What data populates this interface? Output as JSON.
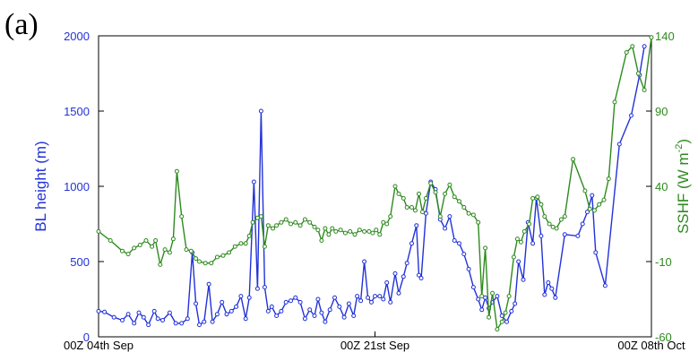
{
  "panel_label": "(a)",
  "chart_data": {
    "type": "line",
    "x_ticks": [
      "00Z 04th Sep",
      "00Z 21st Sep",
      "00Z 08th Oct"
    ],
    "y_left": {
      "label": "BL height (m)",
      "range": [
        0,
        2000
      ],
      "ticks": [
        "0",
        "500",
        "1000",
        "1500",
        "2000"
      ],
      "color": "#2232d8"
    },
    "y_right": {
      "label_main": "SSHF (W m",
      "label_exp": "-2",
      "label_close": ")",
      "range": [
        -60,
        140
      ],
      "ticks": [
        "-60",
        "-10",
        "40",
        "90",
        "140"
      ],
      "color": "#2e8a1e"
    },
    "grid": false,
    "series": [
      {
        "axis": "left",
        "color": "#2232d8",
        "points": [
          [
            0.0,
            170
          ],
          [
            0.5,
            165
          ],
          [
            1.3,
            130
          ],
          [
            2.0,
            110
          ],
          [
            2.5,
            150
          ],
          [
            3.0,
            90
          ],
          [
            3.4,
            160
          ],
          [
            3.8,
            130
          ],
          [
            4.2,
            80
          ],
          [
            4.7,
            170
          ],
          [
            5.0,
            120
          ],
          [
            5.4,
            110
          ],
          [
            6.0,
            160
          ],
          [
            6.5,
            90
          ],
          [
            7.0,
            90
          ],
          [
            7.5,
            120
          ],
          [
            7.9,
            560
          ],
          [
            8.2,
            220
          ],
          [
            8.5,
            80
          ],
          [
            8.9,
            100
          ],
          [
            9.3,
            350
          ],
          [
            9.6,
            100
          ],
          [
            10.0,
            150
          ],
          [
            10.4,
            230
          ],
          [
            10.8,
            150
          ],
          [
            11.2,
            170
          ],
          [
            11.6,
            200
          ],
          [
            12.0,
            270
          ],
          [
            12.4,
            120
          ],
          [
            12.7,
            260
          ],
          [
            13.1,
            1030
          ],
          [
            13.4,
            320
          ],
          [
            13.7,
            1500
          ],
          [
            14.0,
            330
          ],
          [
            14.3,
            170
          ],
          [
            14.6,
            200
          ],
          [
            15.0,
            140
          ],
          [
            15.4,
            170
          ],
          [
            15.8,
            230
          ],
          [
            16.2,
            240
          ],
          [
            16.6,
            260
          ],
          [
            17.0,
            230
          ],
          [
            17.4,
            120
          ],
          [
            17.8,
            180
          ],
          [
            18.2,
            140
          ],
          [
            18.5,
            250
          ],
          [
            18.8,
            160
          ],
          [
            19.1,
            100
          ],
          [
            19.5,
            180
          ],
          [
            19.9,
            260
          ],
          [
            20.3,
            200
          ],
          [
            20.7,
            130
          ],
          [
            21.1,
            220
          ],
          [
            21.5,
            140
          ],
          [
            21.8,
            270
          ],
          [
            22.1,
            240
          ],
          [
            22.4,
            500
          ],
          [
            22.7,
            260
          ],
          [
            23.0,
            230
          ],
          [
            23.3,
            270
          ],
          [
            23.7,
            270
          ],
          [
            24.0,
            250
          ],
          [
            24.3,
            360
          ],
          [
            24.6,
            230
          ],
          [
            25.0,
            420
          ],
          [
            25.3,
            290
          ],
          [
            25.7,
            400
          ],
          [
            26.0,
            490
          ],
          [
            26.4,
            620
          ],
          [
            26.8,
            740
          ],
          [
            27.0,
            410
          ],
          [
            27.2,
            390
          ],
          [
            27.6,
            820
          ],
          [
            28.0,
            1030
          ],
          [
            28.4,
            980
          ],
          [
            28.8,
            780
          ],
          [
            29.2,
            720
          ],
          [
            29.6,
            800
          ],
          [
            30.0,
            640
          ],
          [
            30.4,
            620
          ],
          [
            30.8,
            550
          ],
          [
            31.2,
            450
          ],
          [
            31.6,
            330
          ],
          [
            32.0,
            250
          ],
          [
            32.3,
            180
          ],
          [
            32.6,
            260
          ],
          [
            32.9,
            190
          ],
          [
            33.2,
            230
          ],
          [
            33.6,
            270
          ],
          [
            34.0,
            140
          ],
          [
            34.4,
            100
          ],
          [
            34.8,
            170
          ],
          [
            35.1,
            220
          ],
          [
            35.4,
            500
          ],
          [
            35.8,
            380
          ],
          [
            36.2,
            760
          ],
          [
            36.6,
            620
          ],
          [
            36.9,
            920
          ],
          [
            37.3,
            670
          ],
          [
            37.6,
            280
          ],
          [
            37.9,
            360
          ],
          [
            38.2,
            320
          ],
          [
            38.5,
            260
          ],
          [
            39.3,
            680
          ],
          [
            40.4,
            670
          ],
          [
            40.8,
            750
          ],
          [
            41.2,
            830
          ],
          [
            41.6,
            940
          ],
          [
            41.9,
            560
          ],
          [
            42.7,
            340
          ],
          [
            43.9,
            1280
          ],
          [
            44.9,
            1470
          ],
          [
            45.6,
            1740
          ],
          [
            46.0,
            1930
          ]
        ]
      },
      {
        "axis": "right",
        "color": "#2e8a1e",
        "points": [
          [
            0.0,
            10
          ],
          [
            1.0,
            4
          ],
          [
            2.0,
            -3
          ],
          [
            2.5,
            -5
          ],
          [
            3.0,
            -1
          ],
          [
            3.5,
            1
          ],
          [
            4.0,
            4
          ],
          [
            4.5,
            0
          ],
          [
            4.8,
            4
          ],
          [
            5.2,
            -12
          ],
          [
            5.6,
            -2
          ],
          [
            6.0,
            -4
          ],
          [
            6.3,
            5
          ],
          [
            6.6,
            50
          ],
          [
            7.0,
            20
          ],
          [
            7.4,
            -2
          ],
          [
            7.8,
            -3
          ],
          [
            8.2,
            -8
          ],
          [
            8.5,
            -10
          ],
          [
            9.0,
            -11
          ],
          [
            9.5,
            -11
          ],
          [
            10.0,
            -7
          ],
          [
            10.5,
            -6
          ],
          [
            11.0,
            -4
          ],
          [
            11.5,
            0
          ],
          [
            12.0,
            2
          ],
          [
            12.4,
            2
          ],
          [
            12.7,
            7
          ],
          [
            13.0,
            16
          ],
          [
            13.4,
            19
          ],
          [
            13.7,
            20
          ],
          [
            14.0,
            0
          ],
          [
            14.3,
            14
          ],
          [
            14.7,
            12
          ],
          [
            15.0,
            14
          ],
          [
            15.4,
            16
          ],
          [
            15.8,
            18
          ],
          [
            16.2,
            15
          ],
          [
            16.6,
            16
          ],
          [
            17.0,
            14
          ],
          [
            17.4,
            18
          ],
          [
            17.8,
            16
          ],
          [
            18.2,
            13
          ],
          [
            18.5,
            11
          ],
          [
            18.8,
            4
          ],
          [
            19.1,
            12
          ],
          [
            19.4,
            8
          ],
          [
            19.7,
            12
          ],
          [
            20.0,
            10
          ],
          [
            20.4,
            11
          ],
          [
            20.8,
            9
          ],
          [
            21.2,
            10
          ],
          [
            21.6,
            8
          ],
          [
            22.0,
            11
          ],
          [
            22.4,
            10
          ],
          [
            22.8,
            10
          ],
          [
            23.1,
            9
          ],
          [
            23.4,
            11
          ],
          [
            23.7,
            8
          ],
          [
            24.0,
            16
          ],
          [
            24.3,
            15
          ],
          [
            24.6,
            20
          ],
          [
            25.0,
            40
          ],
          [
            25.3,
            35
          ],
          [
            25.7,
            32
          ],
          [
            26.0,
            26
          ],
          [
            26.4,
            26
          ],
          [
            26.7,
            24
          ],
          [
            27.0,
            35
          ],
          [
            27.3,
            23
          ],
          [
            27.6,
            32
          ],
          [
            28.0,
            42
          ],
          [
            28.4,
            36
          ],
          [
            28.8,
            20
          ],
          [
            29.2,
            35
          ],
          [
            29.6,
            41
          ],
          [
            30.0,
            33
          ],
          [
            30.4,
            30
          ],
          [
            30.8,
            26
          ],
          [
            31.2,
            22
          ],
          [
            31.6,
            21
          ],
          [
            32.0,
            16
          ],
          [
            32.3,
            -33
          ],
          [
            32.6,
            -1
          ],
          [
            32.9,
            -47
          ],
          [
            33.2,
            -31
          ],
          [
            33.6,
            -55
          ],
          [
            34.0,
            -50
          ],
          [
            34.3,
            -44
          ],
          [
            34.6,
            -33
          ],
          [
            35.0,
            -7
          ],
          [
            35.3,
            5
          ],
          [
            35.6,
            3
          ],
          [
            35.9,
            10
          ],
          [
            36.3,
            15
          ],
          [
            36.6,
            32
          ],
          [
            37.0,
            33
          ],
          [
            37.3,
            28
          ],
          [
            37.6,
            20
          ],
          [
            38.0,
            15
          ],
          [
            38.3,
            13
          ],
          [
            38.6,
            12
          ],
          [
            39.0,
            18
          ],
          [
            39.3,
            20
          ],
          [
            40.0,
            58
          ],
          [
            41.0,
            37
          ],
          [
            41.4,
            25
          ],
          [
            41.8,
            24
          ],
          [
            42.2,
            28
          ],
          [
            42.6,
            31
          ],
          [
            43.0,
            45
          ],
          [
            43.5,
            96
          ],
          [
            44.5,
            129
          ],
          [
            45.0,
            133
          ],
          [
            45.5,
            115
          ],
          [
            46.0,
            104
          ],
          [
            46.6,
            139
          ]
        ]
      }
    ]
  }
}
